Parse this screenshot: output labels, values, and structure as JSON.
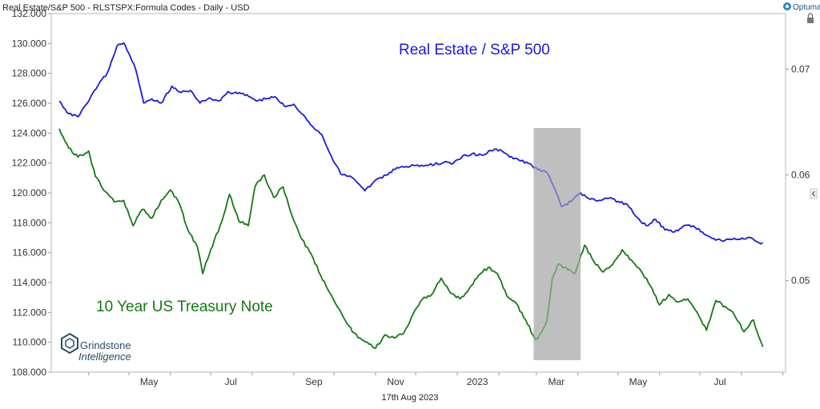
{
  "header": {
    "title": "Real Estate/S&P 500 - RLSTSPX:Formula Codes - Daily - USD",
    "brand": "Optuma"
  },
  "footer": {
    "date_label": "17th Aug 2023"
  },
  "watermark": {
    "line1": "Grindstone",
    "line2": "Intelligence"
  },
  "colors": {
    "primary_series": "#1a1adc",
    "secondary_series": "#127a12",
    "highlight": "#bfbfbf",
    "axis_text": "#333333",
    "panel_border": "#b5b5b5"
  },
  "chart_data": {
    "type": "line",
    "grid": false,
    "x_tick_labels": [
      "May",
      "Jul",
      "Sep",
      "Nov",
      "2023",
      "Mar",
      "May",
      "Jul"
    ],
    "left_axis": {
      "tick_labels": [
        "108.000",
        "110.000",
        "112.000",
        "114.000",
        "116.000",
        "118.000",
        "120.000",
        "122.000",
        "124.000",
        "126.000",
        "128.000",
        "130.000",
        "132.000"
      ],
      "range": [
        108,
        132
      ]
    },
    "right_axis": {
      "tick_labels": [
        "0.05",
        "0.06",
        "0.07"
      ],
      "range": [
        0.04134,
        0.07527
      ]
    },
    "highlight_period": {
      "start": "2023-02-27",
      "end": "2023-04-03"
    },
    "series": [
      {
        "name": "Real Estate / S&P 500",
        "axis": "right",
        "points": [
          [
            "2022-03-10",
            0.067
          ],
          [
            "2022-03-17",
            0.0658
          ],
          [
            "2022-03-24",
            0.0655
          ],
          [
            "2022-04-01",
            0.067
          ],
          [
            "2022-04-08",
            0.0685
          ],
          [
            "2022-04-15",
            0.0697
          ],
          [
            "2022-04-22",
            0.0722
          ],
          [
            "2022-04-27",
            0.0725
          ],
          [
            "2022-05-02",
            0.0712
          ],
          [
            "2022-05-06",
            0.07
          ],
          [
            "2022-05-12",
            0.0668
          ],
          [
            "2022-05-18",
            0.0672
          ],
          [
            "2022-05-25",
            0.0668
          ],
          [
            "2022-06-02",
            0.0684
          ],
          [
            "2022-06-09",
            0.0678
          ],
          [
            "2022-06-16",
            0.068
          ],
          [
            "2022-06-23",
            0.0668
          ],
          [
            "2022-06-30",
            0.0673
          ],
          [
            "2022-07-07",
            0.067
          ],
          [
            "2022-07-14",
            0.0679
          ],
          [
            "2022-07-21",
            0.0677
          ],
          [
            "2022-07-28",
            0.0676
          ],
          [
            "2022-08-04",
            0.067
          ],
          [
            "2022-08-11",
            0.0672
          ],
          [
            "2022-08-18",
            0.0674
          ],
          [
            "2022-08-25",
            0.0665
          ],
          [
            "2022-09-01",
            0.0667
          ],
          [
            "2022-09-08",
            0.0657
          ],
          [
            "2022-09-15",
            0.0646
          ],
          [
            "2022-09-22",
            0.0638
          ],
          [
            "2022-09-29",
            0.0618
          ],
          [
            "2022-10-06",
            0.0601
          ],
          [
            "2022-10-13",
            0.0599
          ],
          [
            "2022-10-20",
            0.0591
          ],
          [
            "2022-10-24",
            0.0585
          ],
          [
            "2022-11-02",
            0.0596
          ],
          [
            "2022-11-10",
            0.06
          ],
          [
            "2022-11-17",
            0.0607
          ],
          [
            "2022-11-24",
            0.0608
          ],
          [
            "2022-12-01",
            0.0609
          ],
          [
            "2022-12-08",
            0.0609
          ],
          [
            "2022-12-15",
            0.061
          ],
          [
            "2022-12-22",
            0.0612
          ],
          [
            "2022-12-29",
            0.0611
          ],
          [
            "2023-01-05",
            0.0618
          ],
          [
            "2023-01-12",
            0.062
          ],
          [
            "2023-01-19",
            0.0619
          ],
          [
            "2023-01-26",
            0.0623
          ],
          [
            "2023-02-02",
            0.0624
          ],
          [
            "2023-02-09",
            0.0617
          ],
          [
            "2023-02-16",
            0.0614
          ],
          [
            "2023-02-23",
            0.0611
          ],
          [
            "2023-03-02",
            0.0605
          ],
          [
            "2023-03-09",
            0.0602
          ],
          [
            "2023-03-16",
            0.0583
          ],
          [
            "2023-03-20",
            0.057
          ],
          [
            "2023-03-27",
            0.0575
          ],
          [
            "2023-04-03",
            0.0583
          ],
          [
            "2023-04-10",
            0.0577
          ],
          [
            "2023-04-17",
            0.0576
          ],
          [
            "2023-04-24",
            0.0578
          ],
          [
            "2023-05-01",
            0.0575
          ],
          [
            "2023-05-08",
            0.0572
          ],
          [
            "2023-05-15",
            0.056
          ],
          [
            "2023-05-22",
            0.0552
          ],
          [
            "2023-05-29",
            0.0558
          ],
          [
            "2023-06-05",
            0.0548
          ],
          [
            "2023-06-12",
            0.0546
          ],
          [
            "2023-06-19",
            0.0552
          ],
          [
            "2023-06-26",
            0.0552
          ],
          [
            "2023-07-03",
            0.0546
          ],
          [
            "2023-07-10",
            0.054
          ],
          [
            "2023-07-17",
            0.0538
          ],
          [
            "2023-07-24",
            0.0539
          ],
          [
            "2023-07-31",
            0.0539
          ],
          [
            "2023-08-07",
            0.0541
          ],
          [
            "2023-08-14",
            0.0536
          ],
          [
            "2023-08-17",
            0.0536
          ]
        ]
      },
      {
        "name": "10 Year US Treasury Note",
        "axis": "left",
        "points": [
          [
            "2022-03-10",
            124.3
          ],
          [
            "2022-03-17",
            123.0
          ],
          [
            "2022-03-24",
            122.4
          ],
          [
            "2022-04-01",
            122.8
          ],
          [
            "2022-04-06",
            121.1
          ],
          [
            "2022-04-13",
            120.1
          ],
          [
            "2022-04-20",
            119.4
          ],
          [
            "2022-04-27",
            119.5
          ],
          [
            "2022-05-04",
            117.8
          ],
          [
            "2022-05-11",
            118.9
          ],
          [
            "2022-05-18",
            118.3
          ],
          [
            "2022-05-25",
            119.5
          ],
          [
            "2022-06-01",
            120.2
          ],
          [
            "2022-06-08",
            119.2
          ],
          [
            "2022-06-14",
            117.5
          ],
          [
            "2022-06-21",
            116.4
          ],
          [
            "2022-06-25",
            114.6
          ],
          [
            "2022-07-01",
            116.2
          ],
          [
            "2022-07-08",
            117.8
          ],
          [
            "2022-07-15",
            119.9
          ],
          [
            "2022-07-22",
            118.1
          ],
          [
            "2022-07-29",
            117.8
          ],
          [
            "2022-08-03",
            120.4
          ],
          [
            "2022-08-10",
            121.2
          ],
          [
            "2022-08-17",
            119.7
          ],
          [
            "2022-08-24",
            120.4
          ],
          [
            "2022-08-31",
            118.4
          ],
          [
            "2022-09-07",
            116.9
          ],
          [
            "2022-09-14",
            115.9
          ],
          [
            "2022-09-21",
            114.5
          ],
          [
            "2022-09-28",
            113.3
          ],
          [
            "2022-10-05",
            112.2
          ],
          [
            "2022-10-12",
            111.1
          ],
          [
            "2022-10-19",
            110.3
          ],
          [
            "2022-10-26",
            110.0
          ],
          [
            "2022-11-01",
            109.6
          ],
          [
            "2022-11-08",
            110.5
          ],
          [
            "2022-11-15",
            110.3
          ],
          [
            "2022-11-22",
            110.6
          ],
          [
            "2022-11-29",
            111.9
          ],
          [
            "2022-12-06",
            112.9
          ],
          [
            "2022-12-13",
            113.2
          ],
          [
            "2022-12-20",
            114.3
          ],
          [
            "2022-12-27",
            113.3
          ],
          [
            "2023-01-03",
            112.9
          ],
          [
            "2023-01-10",
            113.6
          ],
          [
            "2023-01-17",
            114.5
          ],
          [
            "2023-01-24",
            115.0
          ],
          [
            "2023-01-31",
            114.6
          ],
          [
            "2023-02-07",
            113.1
          ],
          [
            "2023-02-14",
            112.6
          ],
          [
            "2023-02-21",
            111.5
          ],
          [
            "2023-02-28",
            110.2
          ],
          [
            "2023-03-02",
            110.2
          ],
          [
            "2023-03-09",
            111.5
          ],
          [
            "2023-03-13",
            114.3
          ],
          [
            "2023-03-17",
            115.2
          ],
          [
            "2023-03-23",
            115.0
          ],
          [
            "2023-03-30",
            114.6
          ],
          [
            "2023-04-06",
            116.5
          ],
          [
            "2023-04-13",
            115.4
          ],
          [
            "2023-04-20",
            114.7
          ],
          [
            "2023-04-27",
            115.2
          ],
          [
            "2023-05-04",
            116.2
          ],
          [
            "2023-05-11",
            115.5
          ],
          [
            "2023-05-18",
            114.8
          ],
          [
            "2023-05-25",
            113.8
          ],
          [
            "2023-06-01",
            112.5
          ],
          [
            "2023-06-08",
            113.2
          ],
          [
            "2023-06-15",
            112.7
          ],
          [
            "2023-06-22",
            112.9
          ],
          [
            "2023-06-29",
            112.0
          ],
          [
            "2023-07-06",
            110.8
          ],
          [
            "2023-07-13",
            112.8
          ],
          [
            "2023-07-20",
            112.4
          ],
          [
            "2023-07-27",
            111.8
          ],
          [
            "2023-08-03",
            110.7
          ],
          [
            "2023-08-10",
            111.5
          ],
          [
            "2023-08-17",
            109.7
          ]
        ]
      }
    ]
  }
}
